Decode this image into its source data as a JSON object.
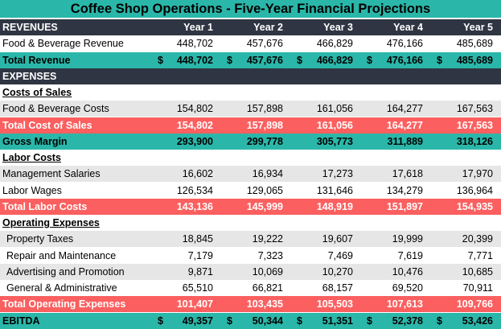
{
  "title": "Coffee Shop Operations - Five-Year Financial Projections",
  "years": [
    "Year 1",
    "Year 2",
    "Year 3",
    "Year 4",
    "Year 5"
  ],
  "currency_symbol": "$",
  "rows": [
    {
      "style": "dark",
      "label": "REVENUES",
      "header": true
    },
    {
      "style": "white",
      "label": "Food & Beverage Revenue",
      "values": [
        "448,702",
        "457,676",
        "466,829",
        "476,166",
        "485,689"
      ]
    },
    {
      "style": "teal",
      "label": "Total Revenue",
      "currency": true,
      "values": [
        "448,702",
        "457,676",
        "466,829",
        "476,166",
        "485,689"
      ]
    },
    {
      "style": "dark",
      "label": "EXPENSES"
    },
    {
      "style": "section",
      "label": "Costs of Sales"
    },
    {
      "style": "gray",
      "label": "Food & Beverage Costs",
      "values": [
        "154,802",
        "157,898",
        "161,056",
        "164,277",
        "167,563"
      ]
    },
    {
      "style": "coral",
      "label": "Total Cost of Sales",
      "values": [
        "154,802",
        "157,898",
        "161,056",
        "164,277",
        "167,563"
      ]
    },
    {
      "style": "teal",
      "label": "Gross Margin",
      "values": [
        "293,900",
        "299,778",
        "305,773",
        "311,889",
        "318,126"
      ]
    },
    {
      "style": "section",
      "label": "Labor Costs"
    },
    {
      "style": "gray",
      "label": "Management Salaries",
      "values": [
        "16,602",
        "16,934",
        "17,273",
        "17,618",
        "17,970"
      ]
    },
    {
      "style": "white",
      "label": "Labor Wages",
      "values": [
        "126,534",
        "129,065",
        "131,646",
        "134,279",
        "136,964"
      ]
    },
    {
      "style": "coral",
      "label": "Total Labor Costs",
      "values": [
        "143,136",
        "145,999",
        "148,919",
        "151,897",
        "154,935"
      ]
    },
    {
      "style": "section",
      "label": "Operating Expenses"
    },
    {
      "style": "gray",
      "label": "Property Taxes",
      "indent": true,
      "values": [
        "18,845",
        "19,222",
        "19,607",
        "19,999",
        "20,399"
      ]
    },
    {
      "style": "white",
      "label": "Repair and Maintenance",
      "indent": true,
      "values": [
        "7,179",
        "7,323",
        "7,469",
        "7,619",
        "7,771"
      ]
    },
    {
      "style": "gray",
      "label": "Advertising and Promotion",
      "indent": true,
      "values": [
        "9,871",
        "10,069",
        "10,270",
        "10,476",
        "10,685"
      ]
    },
    {
      "style": "white",
      "label": "General & Administrative",
      "indent": true,
      "values": [
        "65,510",
        "66,821",
        "68,157",
        "69,520",
        "70,911"
      ]
    },
    {
      "style": "coral",
      "label": "Total Operating Expenses",
      "values": [
        "101,407",
        "103,435",
        "105,503",
        "107,613",
        "109,766"
      ]
    },
    {
      "style": "teal",
      "label": "EBITDA",
      "currency": true,
      "values": [
        "49,357",
        "50,344",
        "51,351",
        "52,378",
        "53,426"
      ]
    }
  ]
}
